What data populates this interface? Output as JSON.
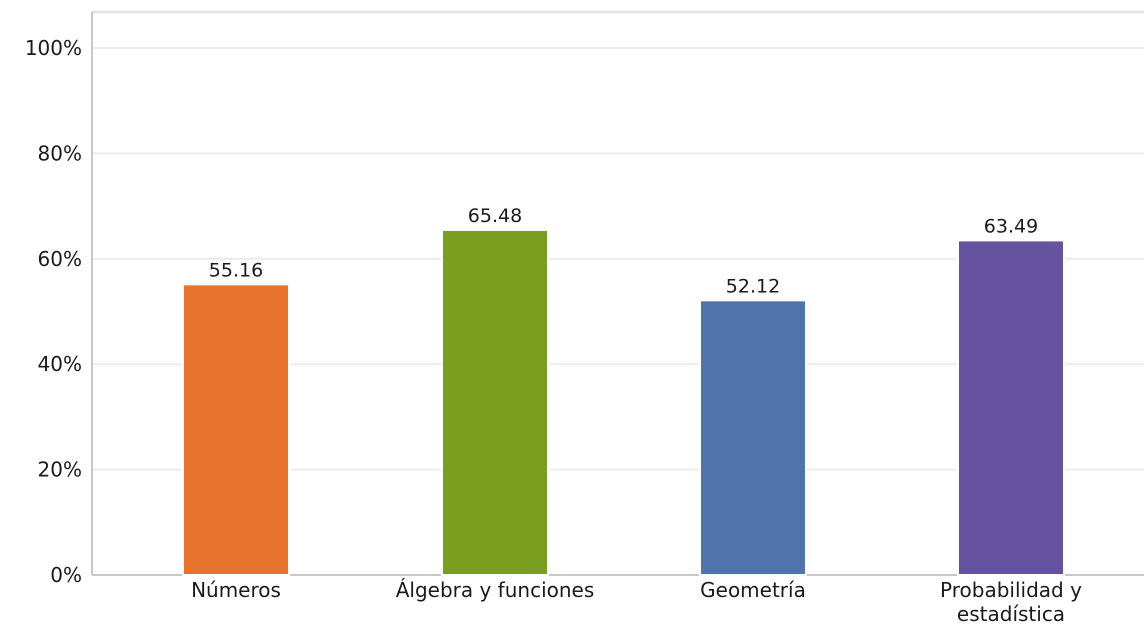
{
  "chart_data": {
    "type": "bar",
    "categories": [
      "Números",
      "Álgebra y funciones",
      "Geometría",
      "Probabilidad y estadística"
    ],
    "category_lines": [
      [
        "Números"
      ],
      [
        "Álgebra y funciones"
      ],
      [
        "Geometría"
      ],
      [
        "Probabilidad y",
        "estadística"
      ]
    ],
    "values": [
      55.16,
      65.48,
      52.12,
      63.49
    ],
    "data_labels": [
      "55.16",
      "65.48",
      "52.12",
      "63.49"
    ],
    "colors": [
      "#E8732D",
      "#7A9E1D",
      "#4F75AC",
      "#6553A0"
    ],
    "ylim": [
      0,
      100
    ],
    "yticks": [
      0,
      20,
      40,
      60,
      80,
      100
    ],
    "ytick_labels": [
      "0%",
      "20%",
      "40%",
      "60%",
      "80%",
      "100%"
    ],
    "grid": true,
    "title": "",
    "xlabel": "",
    "ylabel": ""
  }
}
